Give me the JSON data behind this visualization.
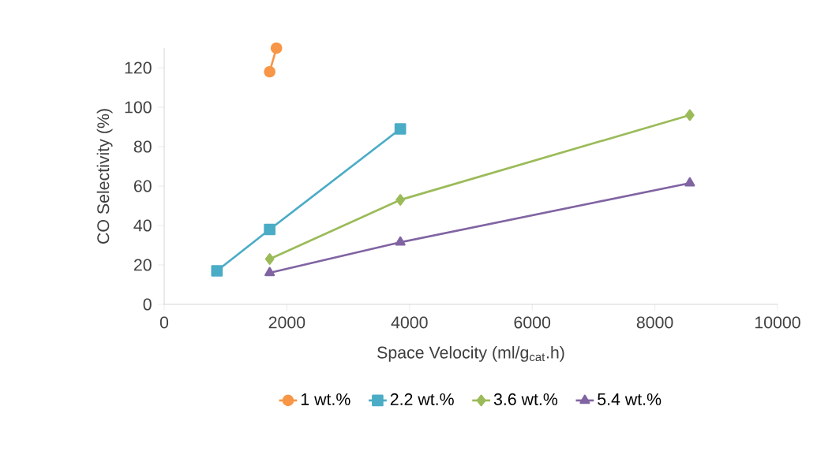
{
  "chart_data": {
    "type": "line",
    "xlabel": "Space Velocity (ml/g$_{cat}$.h)",
    "ylabel": "CO Selectivity (%)",
    "xlim": [
      0,
      10000
    ],
    "xticks": [
      0,
      2000,
      4000,
      6000,
      8000,
      10000
    ],
    "ylim": [
      0,
      130
    ],
    "yticks": [
      0,
      20,
      40,
      60,
      80,
      100,
      120
    ],
    "grid": false,
    "legend": "bottom",
    "line_style": "solid",
    "series": [
      {
        "name": "1 wt.%",
        "color": "#f79646",
        "marker": "circle",
        "x": [
          1720,
          1830
        ],
        "values": [
          118,
          130
        ]
      },
      {
        "name": "2.2 wt.%",
        "color": "#4bacc6",
        "marker": "square",
        "x": [
          860,
          1720,
          3850
        ],
        "values": [
          17,
          38,
          89
        ]
      },
      {
        "name": "3.6 wt.%",
        "color": "#9bbb59",
        "marker": "diamond",
        "x": [
          1720,
          3850,
          8570
        ],
        "values": [
          23,
          53,
          96
        ]
      },
      {
        "name": "5.4 wt.%",
        "color": "#8064a2",
        "marker": "triangle",
        "x": [
          1720,
          3850,
          8570
        ],
        "values": [
          16,
          31.5,
          61.5
        ]
      }
    ]
  }
}
